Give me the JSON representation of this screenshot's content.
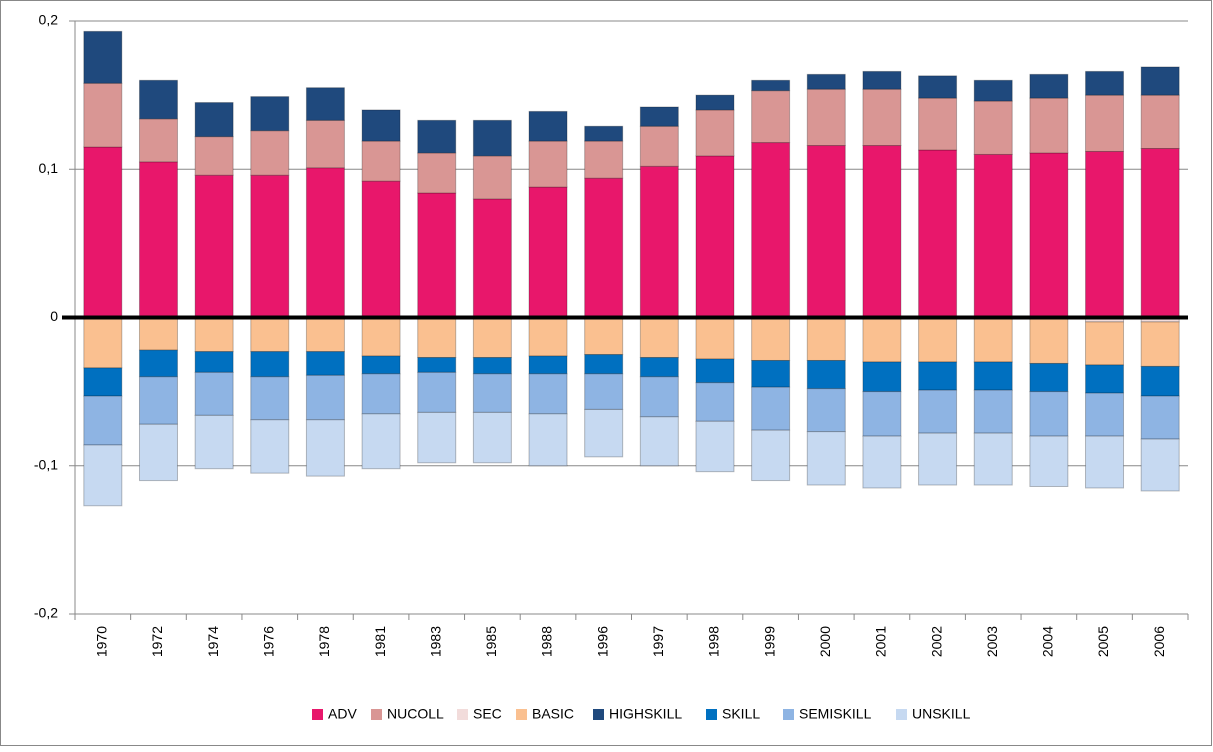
{
  "chart_data": {
    "type": "bar",
    "stacked": true,
    "categories": [
      "1970",
      "1972",
      "1974",
      "1976",
      "1978",
      "1981",
      "1983",
      "1985",
      "1988",
      "1996",
      "1997",
      "1998",
      "1999",
      "2000",
      "2001",
      "2002",
      "2003",
      "2004",
      "2005",
      "2006"
    ],
    "series": [
      {
        "name": "ADV",
        "color": "#e8176b",
        "values": [
          0.115,
          0.105,
          0.096,
          0.096,
          0.101,
          0.092,
          0.084,
          0.08,
          0.088,
          0.094,
          0.102,
          0.109,
          0.118,
          0.116,
          0.116,
          0.113,
          0.11,
          0.111,
          0.112,
          0.114
        ]
      },
      {
        "name": "NUCOLL",
        "color": "#d99694",
        "values": [
          0.043,
          0.029,
          0.026,
          0.03,
          0.032,
          0.027,
          0.027,
          0.029,
          0.031,
          0.025,
          0.027,
          0.031,
          0.035,
          0.038,
          0.038,
          0.035,
          0.036,
          0.037,
          0.038,
          0.036
        ]
      },
      {
        "name": "SEC",
        "color": "#f2dcdb",
        "values": [
          0,
          0,
          0,
          0,
          0,
          0,
          0,
          0,
          0,
          0,
          0,
          0,
          0,
          0,
          -0.001,
          -0.001,
          -0.001,
          -0.001,
          -0.003,
          -0.003
        ]
      },
      {
        "name": "BASIC",
        "color": "#fac090",
        "values": [
          -0.034,
          -0.022,
          -0.023,
          -0.023,
          -0.023,
          -0.026,
          -0.027,
          -0.027,
          -0.026,
          -0.025,
          -0.027,
          -0.028,
          -0.029,
          -0.029,
          -0.029,
          -0.029,
          -0.029,
          -0.03,
          -0.029,
          -0.03
        ]
      },
      {
        "name": "HIGHSKILL",
        "color": "#1f497d",
        "values": [
          0.035,
          0.026,
          0.023,
          0.023,
          0.022,
          0.021,
          0.022,
          0.024,
          0.02,
          0.01,
          0.013,
          0.01,
          0.007,
          0.01,
          0.012,
          0.015,
          0.014,
          0.016,
          0.016,
          0.019
        ]
      },
      {
        "name": "SKILL",
        "color": "#0070c0",
        "values": [
          -0.019,
          -0.018,
          -0.014,
          -0.017,
          -0.016,
          -0.012,
          -0.01,
          -0.011,
          -0.012,
          -0.013,
          -0.013,
          -0.016,
          -0.018,
          -0.019,
          -0.02,
          -0.019,
          -0.019,
          -0.019,
          -0.019,
          -0.02
        ]
      },
      {
        "name": "SEMISKILL",
        "color": "#8eb4e3",
        "values": [
          -0.033,
          -0.032,
          -0.029,
          -0.029,
          -0.03,
          -0.027,
          -0.027,
          -0.026,
          -0.027,
          -0.024,
          -0.027,
          -0.026,
          -0.029,
          -0.029,
          -0.03,
          -0.029,
          -0.029,
          -0.03,
          -0.029,
          -0.029
        ]
      },
      {
        "name": "UNSKILL",
        "color": "#c6d9f1",
        "values": [
          -0.041,
          -0.038,
          -0.036,
          -0.036,
          -0.038,
          -0.037,
          -0.034,
          -0.034,
          -0.035,
          -0.032,
          -0.033,
          -0.034,
          -0.034,
          -0.036,
          -0.035,
          -0.035,
          -0.035,
          -0.034,
          -0.035,
          -0.035
        ]
      }
    ],
    "ylim": [
      -0.2,
      0.2
    ],
    "yticks": [
      {
        "value": -0.2,
        "label": "-0,2"
      },
      {
        "value": -0.1,
        "label": "-0,1"
      },
      0,
      {
        "value": 0.1,
        "label": "0,1"
      },
      {
        "value": 0.2,
        "label": "0,2"
      }
    ],
    "grid": true,
    "legend": "bottom"
  }
}
